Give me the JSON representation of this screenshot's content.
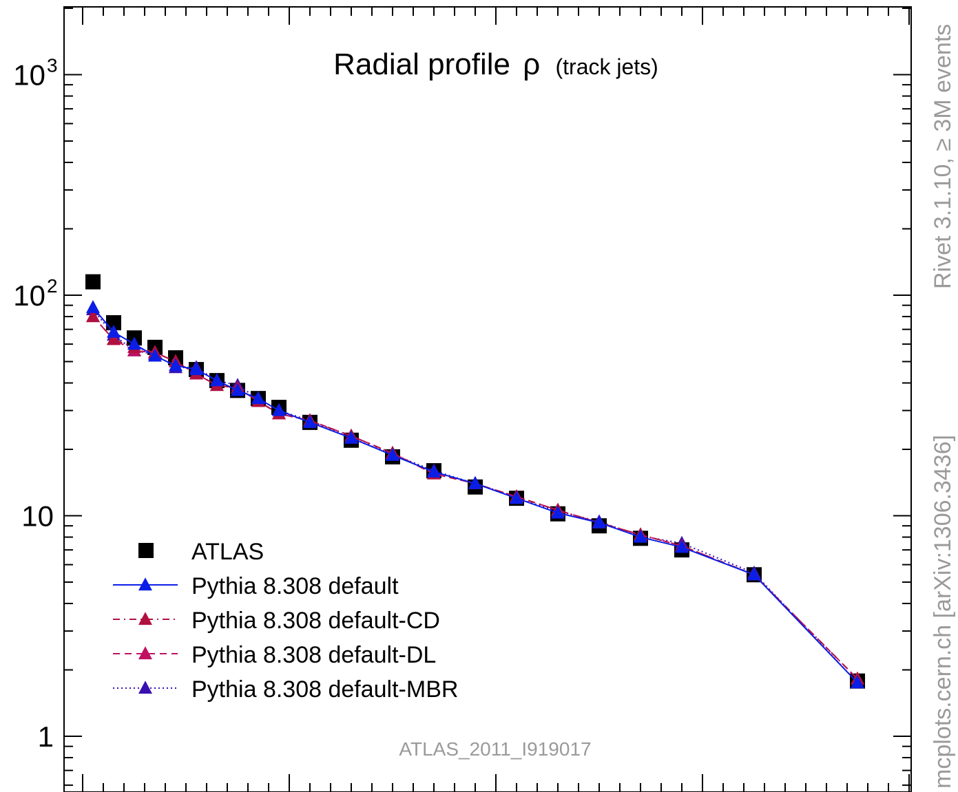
{
  "colors": {
    "atlas": "#000000",
    "default": "#0b1ee6",
    "default_cd": "#b0103f",
    "default_dl": "#c01060",
    "default_mbr": "#3a10b0",
    "watermark": "#9a9a9a"
  },
  "side_text": {
    "rivet": "Rivet 3.1.10, ≥ 3M events",
    "mcplots": "mcplots.cern.ch [arXiv:1306.3436]"
  },
  "chart_data": {
    "type": "scatter",
    "title": "Radial profile",
    "title_symbol": "ρ",
    "title_suffix": "(track jets)",
    "watermark": "ATLAS_2011_I919017",
    "yscale": "log",
    "ylim": [
      0.6,
      2000
    ],
    "xlim": [
      0,
      0.6
    ],
    "ytick_labels": [
      "1",
      "10",
      "10",
      "10"
    ],
    "ytick_exponents": [
      "",
      "",
      "2",
      "3"
    ],
    "legend_position": "bottom-left",
    "x": [
      0.005,
      0.015,
      0.025,
      0.035,
      0.045,
      0.055,
      0.065,
      0.075,
      0.085,
      0.095,
      0.11,
      0.13,
      0.15,
      0.17,
      0.19,
      0.21,
      0.23,
      0.25,
      0.27,
      0.29,
      0.325,
      0.375
    ],
    "series": [
      {
        "name": "ATLAS",
        "marker": "square",
        "line": "none",
        "values": [
          115,
          75,
          64,
          58,
          52,
          46,
          41,
          37,
          34,
          31,
          26.5,
          22,
          18.5,
          16,
          13.5,
          12,
          10.2,
          9,
          7.9,
          7,
          5.4,
          1.78
        ]
      },
      {
        "name": "Pythia 8.308 default",
        "marker": "triangle",
        "line": "solid",
        "values": [
          88,
          68,
          60,
          53,
          48,
          46,
          41,
          37,
          34,
          30,
          26.5,
          22.5,
          18.8,
          15.8,
          14,
          12,
          10.3,
          9.3,
          8.0,
          7.2,
          5.4,
          1.75
        ]
      },
      {
        "name": "Pythia 8.308 default-CD",
        "marker": "triangle",
        "line": "dashdot",
        "values": [
          80,
          63,
          58,
          55,
          50,
          44,
          39,
          38,
          33,
          29,
          27,
          23,
          19.2,
          15.5,
          14,
          12.2,
          10.6,
          9.3,
          8.2,
          7.3,
          5.4,
          1.82
        ]
      },
      {
        "name": "Pythia 8.308 default-DL",
        "marker": "triangle",
        "line": "dashed",
        "values": [
          80,
          63,
          56,
          55,
          50,
          44,
          39,
          38,
          33,
          29,
          27,
          23,
          19.2,
          15.5,
          14,
          12.2,
          10.6,
          9.3,
          8.2,
          7.3,
          5.4,
          1.82
        ]
      },
      {
        "name": "Pythia 8.308 default-MBR",
        "marker": "triangle",
        "line": "dotted",
        "values": [
          86,
          66,
          56,
          54,
          47,
          47,
          41,
          39,
          34,
          30,
          27,
          22.5,
          19,
          16,
          14,
          12,
          10.5,
          9.4,
          8.1,
          7.5,
          5.5,
          1.75
        ]
      }
    ]
  }
}
